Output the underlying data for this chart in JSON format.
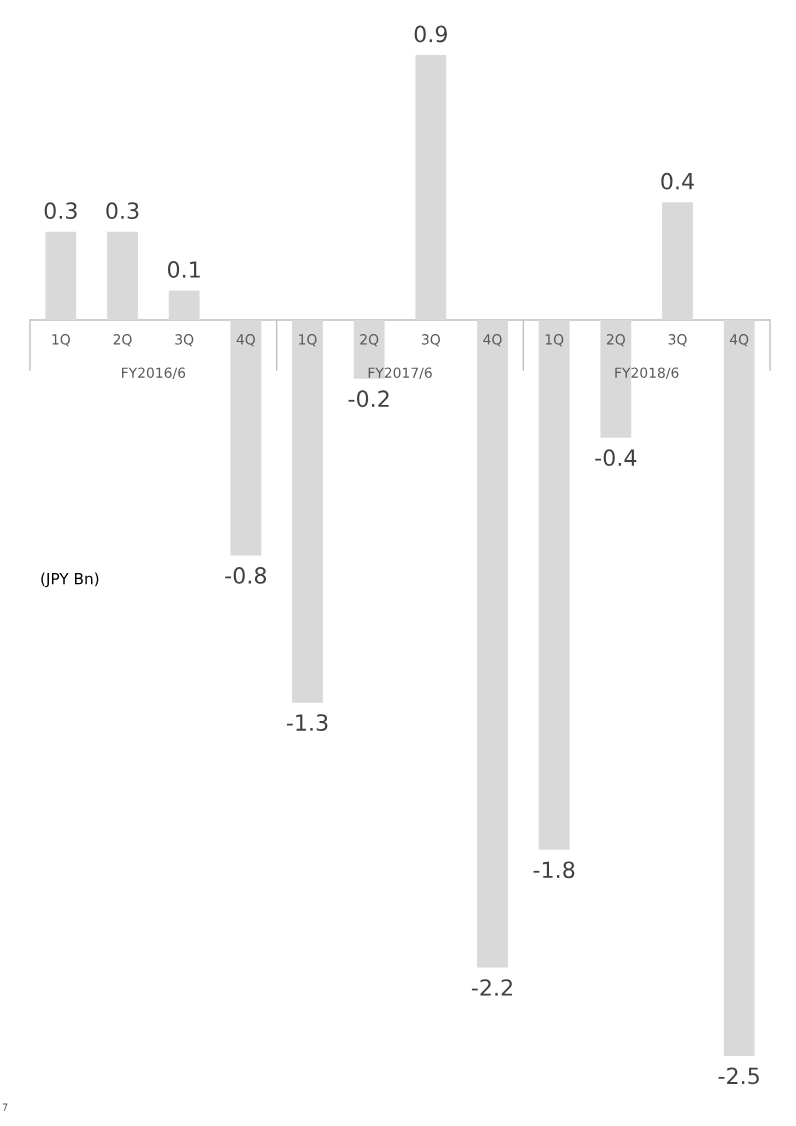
{
  "chart_data": {
    "type": "bar",
    "categories": [
      "1Q",
      "2Q",
      "3Q",
      "4Q",
      "1Q",
      "2Q",
      "3Q",
      "4Q",
      "1Q",
      "2Q",
      "3Q",
      "4Q"
    ],
    "values": [
      0.3,
      0.3,
      0.1,
      -0.8,
      -1.3,
      -0.2,
      0.9,
      -2.2,
      -1.8,
      -0.4,
      0.4,
      -2.5
    ],
    "color": "#d9d9d9",
    "data_labels": true,
    "annotations": [
      "FY2016/6",
      "FY2017/6",
      "FY2018/6",
      "(JPY Bn)",
      "7"
    ]
  }
}
